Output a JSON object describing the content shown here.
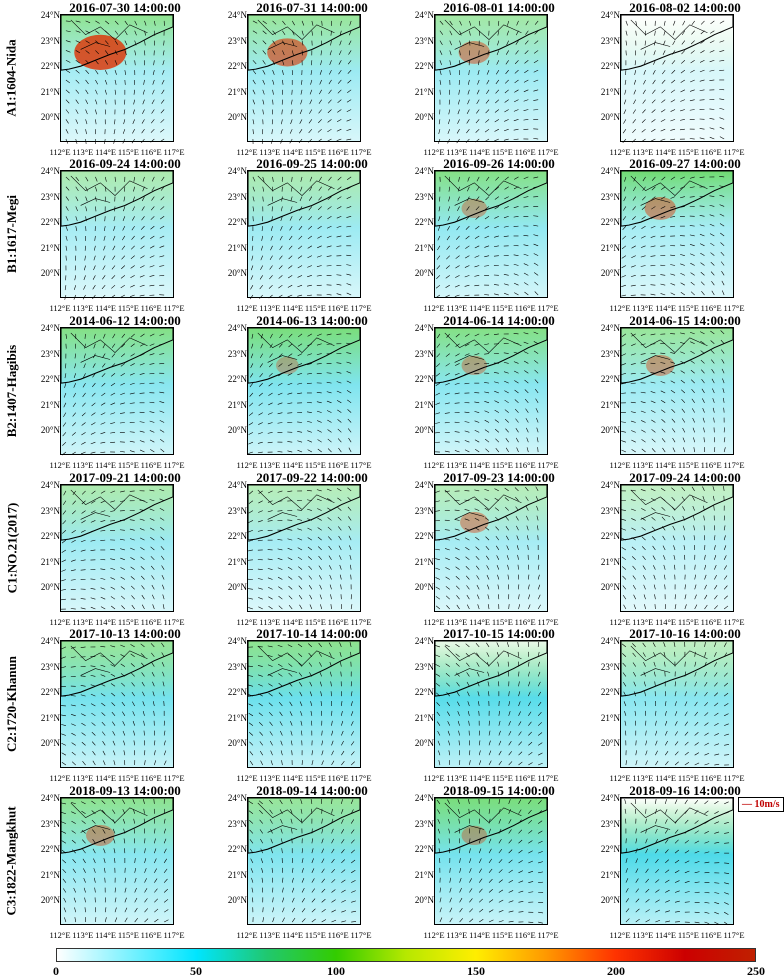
{
  "rows": [
    {
      "label": "A1:1604-Nida",
      "panels": [
        {
          "title": "2016-07-30 14:00:00",
          "fill": {
            "cyan": 0.45,
            "green": 0.55,
            "red": 0.55
          }
        },
        {
          "title": "2016-07-31 14:00:00",
          "fill": {
            "cyan": 0.5,
            "green": 0.5,
            "red": 0.35
          }
        },
        {
          "title": "2016-08-01 14:00:00",
          "fill": {
            "cyan": 0.5,
            "green": 0.45,
            "red": 0.2
          }
        },
        {
          "title": "2016-08-02 14:00:00",
          "fill": {
            "cyan": 0.2,
            "green": 0.0,
            "red": 0.0
          }
        }
      ]
    },
    {
      "label": "B1:1617-Megi",
      "panels": [
        {
          "title": "2016-09-24 14:00:00",
          "fill": {
            "cyan": 0.45,
            "green": 0.4,
            "red": 0.0
          }
        },
        {
          "title": "2016-09-25 14:00:00",
          "fill": {
            "cyan": 0.5,
            "green": 0.4,
            "red": 0.0
          }
        },
        {
          "title": "2016-09-26 14:00:00",
          "fill": {
            "cyan": 0.55,
            "green": 0.6,
            "red": 0.1
          }
        },
        {
          "title": "2016-09-27 14:00:00",
          "fill": {
            "cyan": 0.45,
            "green": 0.7,
            "red": 0.2
          }
        }
      ]
    },
    {
      "label": "B2:1407-Hagibis",
      "panels": [
        {
          "title": "2014-06-12 14:00:00",
          "fill": {
            "cyan": 0.6,
            "green": 0.6,
            "red": 0.0
          }
        },
        {
          "title": "2014-06-13 14:00:00",
          "fill": {
            "cyan": 0.65,
            "green": 0.65,
            "red": 0.05
          }
        },
        {
          "title": "2014-06-14 14:00:00",
          "fill": {
            "cyan": 0.6,
            "green": 0.6,
            "red": 0.1
          }
        },
        {
          "title": "2014-06-15 14:00:00",
          "fill": {
            "cyan": 0.5,
            "green": 0.5,
            "red": 0.15
          }
        }
      ]
    },
    {
      "label": "C1:NO.21(2017)",
      "panels": [
        {
          "title": "2017-09-21 14:00:00",
          "fill": {
            "cyan": 0.5,
            "green": 0.4,
            "red": 0.0
          }
        },
        {
          "title": "2017-09-22 14:00:00",
          "fill": {
            "cyan": 0.45,
            "green": 0.35,
            "red": 0.0
          }
        },
        {
          "title": "2017-09-23 14:00:00",
          "fill": {
            "cyan": 0.45,
            "green": 0.35,
            "red": 0.15
          }
        },
        {
          "title": "2017-09-24 14:00:00",
          "fill": {
            "cyan": 0.35,
            "green": 0.3,
            "red": 0.0
          }
        }
      ]
    },
    {
      "label": "C2:1720-Khanun",
      "panels": [
        {
          "title": "2017-10-13 14:00:00",
          "fill": {
            "cyan": 0.7,
            "green": 0.5,
            "red": 0.0
          }
        },
        {
          "title": "2017-10-14 14:00:00",
          "fill": {
            "cyan": 0.75,
            "green": 0.55,
            "red": 0.0
          }
        },
        {
          "title": "2017-10-15 14:00:00",
          "fill": {
            "cyan": 0.85,
            "green": 0.1,
            "red": 0.0
          }
        },
        {
          "title": "2017-10-16 14:00:00",
          "fill": {
            "cyan": 0.6,
            "green": 0.3,
            "red": 0.0
          }
        }
      ]
    },
    {
      "label": "C3:1822-Mangkhut",
      "panels": [
        {
          "title": "2018-09-13 14:00:00",
          "fill": {
            "cyan": 0.6,
            "green": 0.55,
            "red": 0.15
          }
        },
        {
          "title": "2018-09-14 14:00:00",
          "fill": {
            "cyan": 0.65,
            "green": 0.5,
            "red": 0.0
          }
        },
        {
          "title": "2018-09-15 14:00:00",
          "fill": {
            "cyan": 0.7,
            "green": 0.65,
            "red": 0.1
          }
        },
        {
          "title": "2018-09-16 14:00:00",
          "fill": {
            "cyan": 0.9,
            "green": 0.0,
            "red": 0.0
          },
          "legend": "10m/s"
        }
      ]
    }
  ],
  "axes": {
    "y_ticks": [
      "24°N",
      "23°N",
      "22°N",
      "21°N",
      "20°N"
    ],
    "x_ticks": [
      "112°E",
      "113°E",
      "114°E",
      "115°E",
      "116°E",
      "117°E"
    ]
  },
  "colorbar": {
    "ticks": [
      "0",
      "50",
      "100",
      "150",
      "200",
      "250"
    ],
    "colors": [
      "#ffffff",
      "#00e5ff",
      "#33cc00",
      "#ffee00",
      "#ff3300",
      "#c02000"
    ]
  },
  "palette": {
    "cyan": "#3ad6e6",
    "green": "#33cc33",
    "red": "#e03000",
    "arrow": "#000000"
  }
}
